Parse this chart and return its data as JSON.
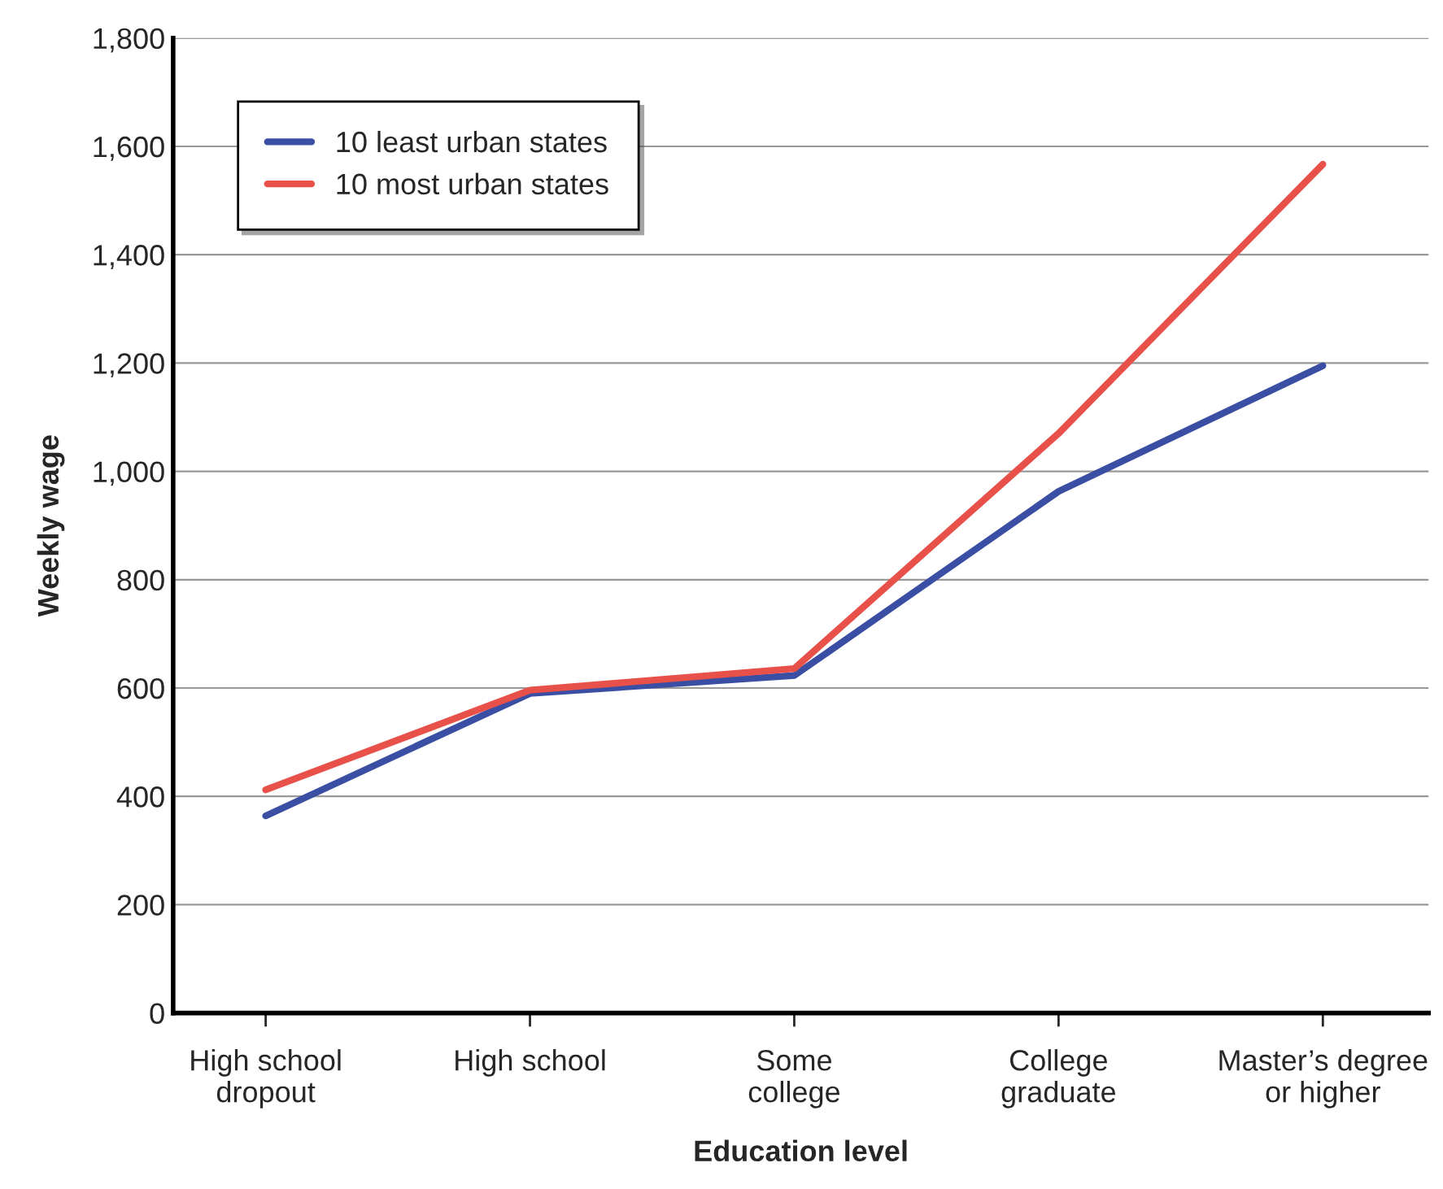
{
  "chart_data": {
    "type": "line",
    "xlabel": "Education level",
    "ylabel": "Weekly wage",
    "categories": [
      "High school\ndropout",
      "High school",
      "Some\ncollege",
      "College\ngraduate",
      "Master’s degree\nor higher"
    ],
    "series": [
      {
        "name": "10 least urban states",
        "color": "#3a4fa3",
        "values": [
          364,
          590,
          623,
          963,
          1195
        ]
      },
      {
        "name": "10 most urban states",
        "color": "#e8504a",
        "values": [
          412,
          596,
          636,
          1070,
          1567
        ]
      }
    ],
    "ylim": [
      0,
      1800
    ],
    "yticks": [
      0,
      {
        "value": 200,
        "label": "200"
      },
      {
        "value": 400,
        "label": "400"
      },
      {
        "value": 600,
        "label": "600"
      },
      {
        "value": 800,
        "label": "800"
      },
      {
        "value": 1000,
        "label": "1,000"
      },
      {
        "value": 1200,
        "label": "1,200"
      },
      {
        "value": 1400,
        "label": "1,400"
      },
      {
        "value": 1600,
        "label": "1,600"
      },
      {
        "value": 1800,
        "label": "1,800"
      }
    ],
    "grid": "y",
    "legend": "top left",
    "marker": "none",
    "line_style": "solid"
  }
}
